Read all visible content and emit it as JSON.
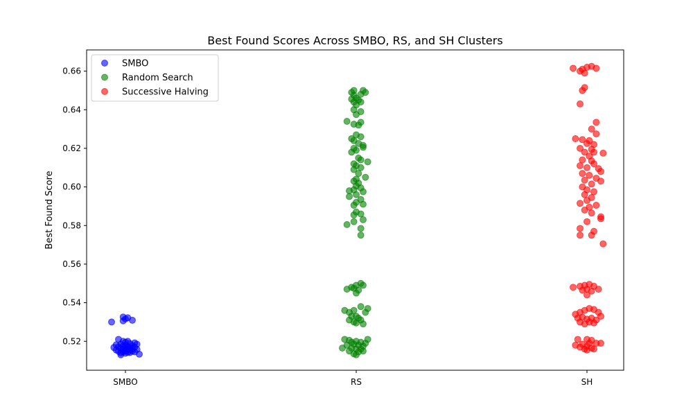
{
  "chart_data": {
    "type": "scatter",
    "title": "Best Found Scores Across SMBO, RS, and SH Clusters",
    "xlabel": "",
    "ylabel": "Best Found Score",
    "categories": [
      "SMBO",
      "RS",
      "SH"
    ],
    "ylim": [
      0.505,
      0.671
    ],
    "yticks": [
      0.52,
      0.54,
      0.56,
      0.58,
      0.6,
      0.62,
      0.64,
      0.66
    ],
    "ytick_labels": [
      "0.52",
      "0.54",
      "0.56",
      "0.58",
      "0.60",
      "0.62",
      "0.64",
      "0.66"
    ],
    "grid": false,
    "legend_position": "top-left",
    "series": [
      {
        "name": "SMBO",
        "category": "SMBO",
        "color": "#0000ff",
        "points": [
          [
            -0.06,
            0.53
          ],
          [
            -0.01,
            0.5326
          ],
          [
            0.0,
            0.5316
          ],
          [
            0.01,
            0.5322
          ],
          [
            -0.01,
            0.5306
          ],
          [
            0.03,
            0.5309
          ],
          [
            -0.05,
            0.5168
          ],
          [
            -0.04,
            0.5155
          ],
          [
            -0.03,
            0.5148
          ],
          [
            -0.03,
            0.5172
          ],
          [
            -0.02,
            0.5163
          ],
          [
            -0.02,
            0.514
          ],
          [
            -0.02,
            0.5185
          ],
          [
            -0.01,
            0.5158
          ],
          [
            -0.01,
            0.5175
          ],
          [
            -0.01,
            0.5145
          ],
          [
            0.0,
            0.515
          ],
          [
            0.0,
            0.5165
          ],
          [
            0.0,
            0.518
          ],
          [
            0.0,
            0.5195
          ],
          [
            0.01,
            0.516
          ],
          [
            0.01,
            0.5143
          ],
          [
            0.01,
            0.5172
          ],
          [
            0.02,
            0.5155
          ],
          [
            0.02,
            0.5188
          ],
          [
            0.02,
            0.5168
          ],
          [
            0.03,
            0.515
          ],
          [
            0.03,
            0.5178
          ],
          [
            0.03,
            0.516
          ],
          [
            0.04,
            0.5145
          ],
          [
            0.04,
            0.517
          ],
          [
            0.05,
            0.5158
          ],
          [
            0.05,
            0.5185
          ],
          [
            0.06,
            0.5133
          ],
          [
            -0.03,
            0.521
          ],
          [
            -0.01,
            0.52
          ],
          [
            0.0,
            0.5138
          ],
          [
            0.02,
            0.5142
          ],
          [
            -0.04,
            0.5182
          ],
          [
            0.04,
            0.5192
          ],
          [
            0.01,
            0.52
          ],
          [
            -0.02,
            0.513
          ]
        ]
      },
      {
        "name": "Random Search",
        "category": "RS",
        "color": "#008000",
        "points": [
          [
            -0.01,
            0.65
          ],
          [
            0.03,
            0.65
          ],
          [
            -0.02,
            0.649
          ],
          [
            0.04,
            0.649
          ],
          [
            -0.01,
            0.6475
          ],
          [
            0.02,
            0.648
          ],
          [
            0.0,
            0.646
          ],
          [
            -0.02,
            0.6455
          ],
          [
            0.01,
            0.645
          ],
          [
            0.02,
            0.644
          ],
          [
            -0.01,
            0.644
          ],
          [
            0.0,
            0.6425
          ],
          [
            -0.01,
            0.64
          ],
          [
            0.02,
            0.639
          ],
          [
            0.0,
            0.6375
          ],
          [
            -0.04,
            0.634
          ],
          [
            0.02,
            0.6335
          ],
          [
            -0.01,
            0.6325
          ],
          [
            0.01,
            0.632
          ],
          [
            0.0,
            0.627
          ],
          [
            0.02,
            0.626
          ],
          [
            -0.02,
            0.625
          ],
          [
            -0.01,
            0.624
          ],
          [
            0.01,
            0.6225
          ],
          [
            0.03,
            0.6215
          ],
          [
            -0.01,
            0.62
          ],
          [
            0.0,
            0.619
          ],
          [
            0.03,
            0.6205
          ],
          [
            -0.02,
            0.618
          ],
          [
            0.01,
            0.615
          ],
          [
            0.02,
            0.614
          ],
          [
            -0.01,
            0.612
          ],
          [
            0.05,
            0.613
          ],
          [
            0.0,
            0.611
          ],
          [
            0.02,
            0.61
          ],
          [
            -0.01,
            0.609
          ],
          [
            0.01,
            0.607
          ],
          [
            0.04,
            0.605
          ],
          [
            0.0,
            0.604
          ],
          [
            -0.01,
            0.603
          ],
          [
            0.01,
            0.602
          ],
          [
            0.0,
            0.6005
          ],
          [
            0.02,
            0.5995
          ],
          [
            -0.01,
            0.5985
          ],
          [
            0.03,
            0.5975
          ],
          [
            -0.03,
            0.598
          ],
          [
            0.0,
            0.596
          ],
          [
            -0.03,
            0.595
          ],
          [
            0.02,
            0.5935
          ],
          [
            0.0,
            0.592
          ],
          [
            -0.01,
            0.5905
          ],
          [
            0.03,
            0.591
          ],
          [
            0.0,
            0.587
          ],
          [
            0.02,
            0.586
          ],
          [
            -0.01,
            0.5855
          ],
          [
            0.03,
            0.583
          ],
          [
            -0.01,
            0.582
          ],
          [
            -0.04,
            0.5805
          ],
          [
            0.02,
            0.5785
          ],
          [
            0.02,
            0.575
          ],
          [
            -0.04,
            0.547
          ],
          [
            -0.02,
            0.548
          ],
          [
            0.0,
            0.549
          ],
          [
            0.02,
            0.55
          ],
          [
            0.03,
            0.549
          ],
          [
            -0.01,
            0.5475
          ],
          [
            0.01,
            0.5465
          ],
          [
            0.0,
            0.545
          ],
          [
            -0.05,
            0.536
          ],
          [
            -0.03,
            0.535
          ],
          [
            -0.01,
            0.536
          ],
          [
            0.02,
            0.538
          ],
          [
            0.04,
            0.535
          ],
          [
            0.05,
            0.537
          ],
          [
            -0.02,
            0.533
          ],
          [
            0.0,
            0.533
          ],
          [
            0.01,
            0.532
          ],
          [
            -0.03,
            0.531
          ],
          [
            0.02,
            0.531
          ],
          [
            -0.01,
            0.53
          ],
          [
            0.03,
            0.529
          ],
          [
            0.0,
            0.5295
          ],
          [
            -0.05,
            0.521
          ],
          [
            -0.03,
            0.5205
          ],
          [
            -0.02,
            0.5195
          ],
          [
            0.0,
            0.52
          ],
          [
            0.02,
            0.5195
          ],
          [
            0.04,
            0.519
          ],
          [
            0.05,
            0.521
          ],
          [
            -0.04,
            0.518
          ],
          [
            -0.01,
            0.5185
          ],
          [
            0.01,
            0.518
          ],
          [
            0.03,
            0.5175
          ],
          [
            -0.02,
            0.5165
          ],
          [
            0.0,
            0.516
          ],
          [
            0.02,
            0.516
          ],
          [
            -0.03,
            0.515
          ],
          [
            0.01,
            0.5145
          ],
          [
            0.03,
            0.515
          ],
          [
            -0.01,
            0.5135
          ],
          [
            0.0,
            0.513
          ],
          [
            -0.06,
            0.5165
          ]
        ]
      },
      {
        "name": "Successive Halving",
        "category": "SH",
        "color": "#ff0000",
        "points": [
          [
            -0.06,
            0.6615
          ],
          [
            -0.02,
            0.661
          ],
          [
            0.0,
            0.662
          ],
          [
            0.02,
            0.6625
          ],
          [
            0.04,
            0.6615
          ],
          [
            -0.03,
            0.66
          ],
          [
            -0.01,
            0.659
          ],
          [
            -0.01,
            0.6515
          ],
          [
            -0.02,
            0.65
          ],
          [
            -0.03,
            0.643
          ],
          [
            0.04,
            0.6335
          ],
          [
            0.02,
            0.63
          ],
          [
            0.04,
            0.6275
          ],
          [
            -0.05,
            0.625
          ],
          [
            -0.02,
            0.6245
          ],
          [
            0.01,
            0.624
          ],
          [
            0.0,
            0.6225
          ],
          [
            0.03,
            0.622
          ],
          [
            -0.03,
            0.62
          ],
          [
            0.02,
            0.6195
          ],
          [
            0.03,
            0.618
          ],
          [
            -0.01,
            0.618
          ],
          [
            0.07,
            0.6175
          ],
          [
            0.01,
            0.616
          ],
          [
            -0.02,
            0.614
          ],
          [
            0.02,
            0.6135
          ],
          [
            0.03,
            0.612
          ],
          [
            -0.03,
            0.611
          ],
          [
            0.0,
            0.61
          ],
          [
            0.05,
            0.6095
          ],
          [
            0.06,
            0.608
          ],
          [
            -0.02,
            0.607
          ],
          [
            0.01,
            0.606
          ],
          [
            0.04,
            0.6045
          ],
          [
            -0.01,
            0.6035
          ],
          [
            0.06,
            0.603
          ],
          [
            0.02,
            0.6015
          ],
          [
            -0.02,
            0.6
          ],
          [
            0.0,
            0.5985
          ],
          [
            0.03,
            0.5975
          ],
          [
            -0.01,
            0.596
          ],
          [
            0.02,
            0.5945
          ],
          [
            0.0,
            0.593
          ],
          [
            -0.03,
            0.5915
          ],
          [
            0.04,
            0.5905
          ],
          [
            0.01,
            0.5895
          ],
          [
            -0.01,
            0.588
          ],
          [
            0.02,
            0.5865
          ],
          [
            0.06,
            0.5845
          ],
          [
            0.06,
            0.5835
          ],
          [
            0.0,
            0.582
          ],
          [
            -0.03,
            0.5785
          ],
          [
            0.03,
            0.577
          ],
          [
            -0.03,
            0.575
          ],
          [
            0.02,
            0.575
          ],
          [
            0.07,
            0.5705
          ],
          [
            -0.06,
            0.548
          ],
          [
            -0.03,
            0.5485
          ],
          [
            -0.01,
            0.549
          ],
          [
            0.01,
            0.5495
          ],
          [
            0.03,
            0.5485
          ],
          [
            0.05,
            0.547
          ],
          [
            -0.02,
            0.5465
          ],
          [
            0.0,
            0.547
          ],
          [
            0.02,
            0.546
          ],
          [
            0.0,
            0.544
          ],
          [
            -0.05,
            0.534
          ],
          [
            -0.03,
            0.535
          ],
          [
            -0.01,
            0.536
          ],
          [
            0.01,
            0.537
          ],
          [
            0.03,
            0.5365
          ],
          [
            0.05,
            0.535
          ],
          [
            0.06,
            0.533
          ],
          [
            -0.04,
            0.532
          ],
          [
            -0.02,
            0.5325
          ],
          [
            0.0,
            0.5315
          ],
          [
            0.02,
            0.532
          ],
          [
            0.04,
            0.531
          ],
          [
            -0.03,
            0.53
          ],
          [
            0.01,
            0.53
          ],
          [
            0.03,
            0.5295
          ],
          [
            -0.01,
            0.529
          ],
          [
            -0.04,
            0.521
          ],
          [
            0.0,
            0.521
          ],
          [
            0.02,
            0.5205
          ],
          [
            -0.05,
            0.518
          ],
          [
            -0.02,
            0.5185
          ],
          [
            0.01,
            0.519
          ],
          [
            0.04,
            0.519
          ],
          [
            0.06,
            0.519
          ],
          [
            -0.03,
            0.517
          ],
          [
            0.0,
            0.5175
          ],
          [
            0.02,
            0.5165
          ],
          [
            -0.01,
            0.516
          ],
          [
            0.03,
            0.516
          ],
          [
            0.0,
            0.5155
          ]
        ]
      }
    ]
  }
}
